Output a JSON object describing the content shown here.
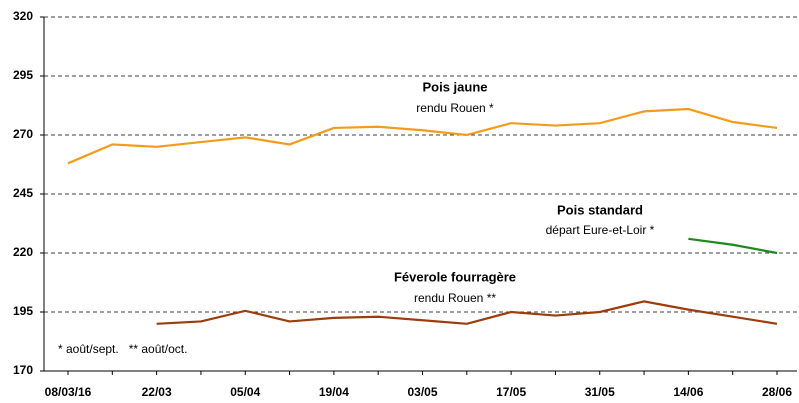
{
  "chart_data": {
    "type": "line",
    "categories": [
      "08/03/16",
      null,
      "22/03",
      null,
      "05/04",
      null,
      "19/04",
      null,
      "03/05",
      null,
      "17/05",
      null,
      "31/05",
      null,
      "14/06",
      null,
      "28/06"
    ],
    "series": [
      {
        "name": "Pois jaune",
        "note": "rendu Rouen *",
        "color": "#f39c1b",
        "values": [
          258,
          266,
          265,
          267,
          269,
          266,
          273,
          273.5,
          272,
          270,
          275,
          274,
          275,
          280,
          281,
          275.5,
          273
        ]
      },
      {
        "name": "Pois standard",
        "note": "départ Eure-et-Loir *",
        "color": "#1e8a1e",
        "values": [
          null,
          null,
          null,
          null,
          null,
          null,
          null,
          null,
          null,
          null,
          null,
          null,
          null,
          null,
          226,
          223.5,
          220
        ]
      },
      {
        "name": "Féverole fourragère",
        "note": "rendu Rouen **",
        "color": "#9c3d0e",
        "values": [
          null,
          null,
          190,
          191,
          195.5,
          191,
          192.5,
          193,
          191.5,
          190,
          195,
          193.5,
          195,
          199.5,
          196,
          193,
          190
        ]
      }
    ],
    "footnote": "* août/sept.   ** août/oct.",
    "ylim": [
      170,
      320
    ],
    "yticks": [
      170,
      195,
      220,
      245,
      270,
      295,
      320
    ],
    "grid": true
  }
}
